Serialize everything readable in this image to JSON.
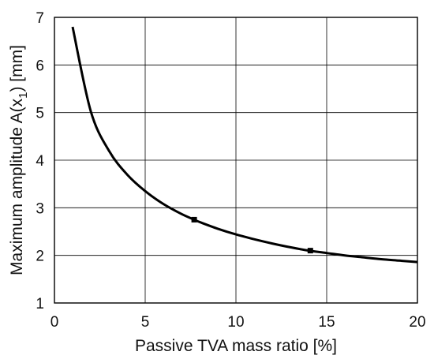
{
  "chart_data": {
    "type": "line",
    "title": "",
    "xlabel": "Passive TVA mass ratio [%]",
    "ylabel": {
      "main": "Maximum amplitude A(x",
      "sub": "1",
      "tail": ") [mm]"
    },
    "xlim": [
      0,
      20
    ],
    "ylim": [
      1,
      7
    ],
    "x_ticks": [
      0,
      5,
      10,
      15,
      20
    ],
    "y_ticks": [
      1,
      2,
      3,
      4,
      5,
      6,
      7
    ],
    "grid": true,
    "series": [
      {
        "x": [
          1,
          2,
          3,
          4,
          5,
          6,
          7,
          7.7,
          8,
          9,
          10,
          11,
          12,
          13,
          14,
          15,
          16,
          17,
          18,
          19,
          20
        ],
        "y": [
          6.8,
          5.03,
          4.2,
          3.7,
          3.35,
          3.08,
          2.87,
          2.75,
          2.7,
          2.56,
          2.44,
          2.34,
          2.25,
          2.17,
          2.1,
          2.05,
          2.0,
          1.96,
          1.92,
          1.89,
          1.86
        ]
      }
    ],
    "markers": [
      {
        "x": 7.7,
        "y": 2.75
      },
      {
        "x": 14.1,
        "y": 2.1
      }
    ],
    "colors": {
      "line": "#000000",
      "grid": "#000000",
      "frame": "#000000"
    }
  }
}
